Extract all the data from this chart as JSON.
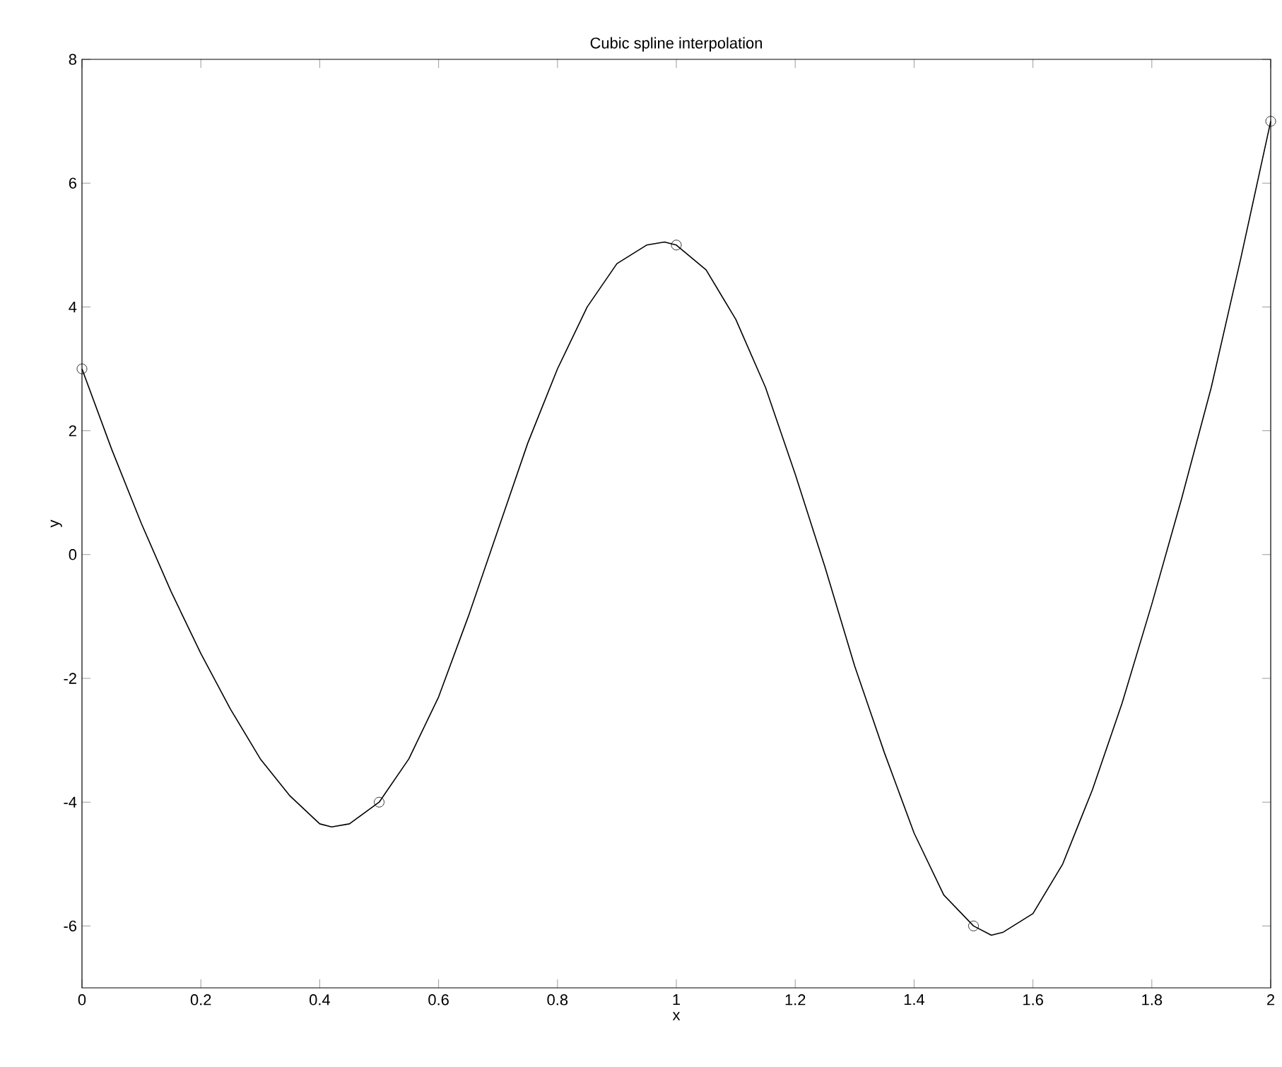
{
  "chart_data": {
    "type": "line",
    "title": "Cubic spline interpolation",
    "xlabel": "x",
    "ylabel": "y",
    "xlim": [
      0,
      2
    ],
    "ylim": [
      -7,
      8
    ],
    "xticks": [
      0,
      0.2,
      0.4,
      0.6,
      0.8,
      1,
      1.2,
      1.4,
      1.6,
      1.8,
      2
    ],
    "yticks": [
      -6,
      -4,
      -2,
      0,
      2,
      4,
      6,
      8
    ],
    "series": [
      {
        "marker": "none",
        "color": "#000000",
        "x": [
          0,
          0.05,
          0.1,
          0.15,
          0.2,
          0.25,
          0.3,
          0.35,
          0.4,
          0.42,
          0.45,
          0.5,
          0.55,
          0.6,
          0.65,
          0.7,
          0.75,
          0.8,
          0.85,
          0.9,
          0.95,
          0.98,
          1.0,
          1.05,
          1.1,
          1.15,
          1.2,
          1.25,
          1.3,
          1.35,
          1.4,
          1.45,
          1.5,
          1.53,
          1.55,
          1.6,
          1.65,
          1.7,
          1.75,
          1.8,
          1.85,
          1.9,
          1.95,
          2.0
        ],
        "values": [
          3,
          1.7,
          0.5,
          -0.6,
          -1.6,
          -2.5,
          -3.3,
          -3.9,
          -4.35,
          -4.4,
          -4.35,
          -4.0,
          -3.3,
          -2.3,
          -1.0,
          0.4,
          1.8,
          3.0,
          4.0,
          4.7,
          5.0,
          5.05,
          5.0,
          4.6,
          3.8,
          2.7,
          1.3,
          -0.2,
          -1.8,
          -3.2,
          -4.5,
          -5.5,
          -6.0,
          -6.15,
          -6.1,
          -5.8,
          -5.0,
          -3.8,
          -2.4,
          -0.8,
          0.9,
          2.7,
          4.8,
          7.0
        ]
      },
      {
        "type": "scatter",
        "marker": "circle",
        "color": "#000000",
        "x": [
          0,
          0.5,
          1,
          1.5,
          2
        ],
        "values": [
          3,
          -4,
          5,
          -6,
          7
        ]
      }
    ]
  }
}
